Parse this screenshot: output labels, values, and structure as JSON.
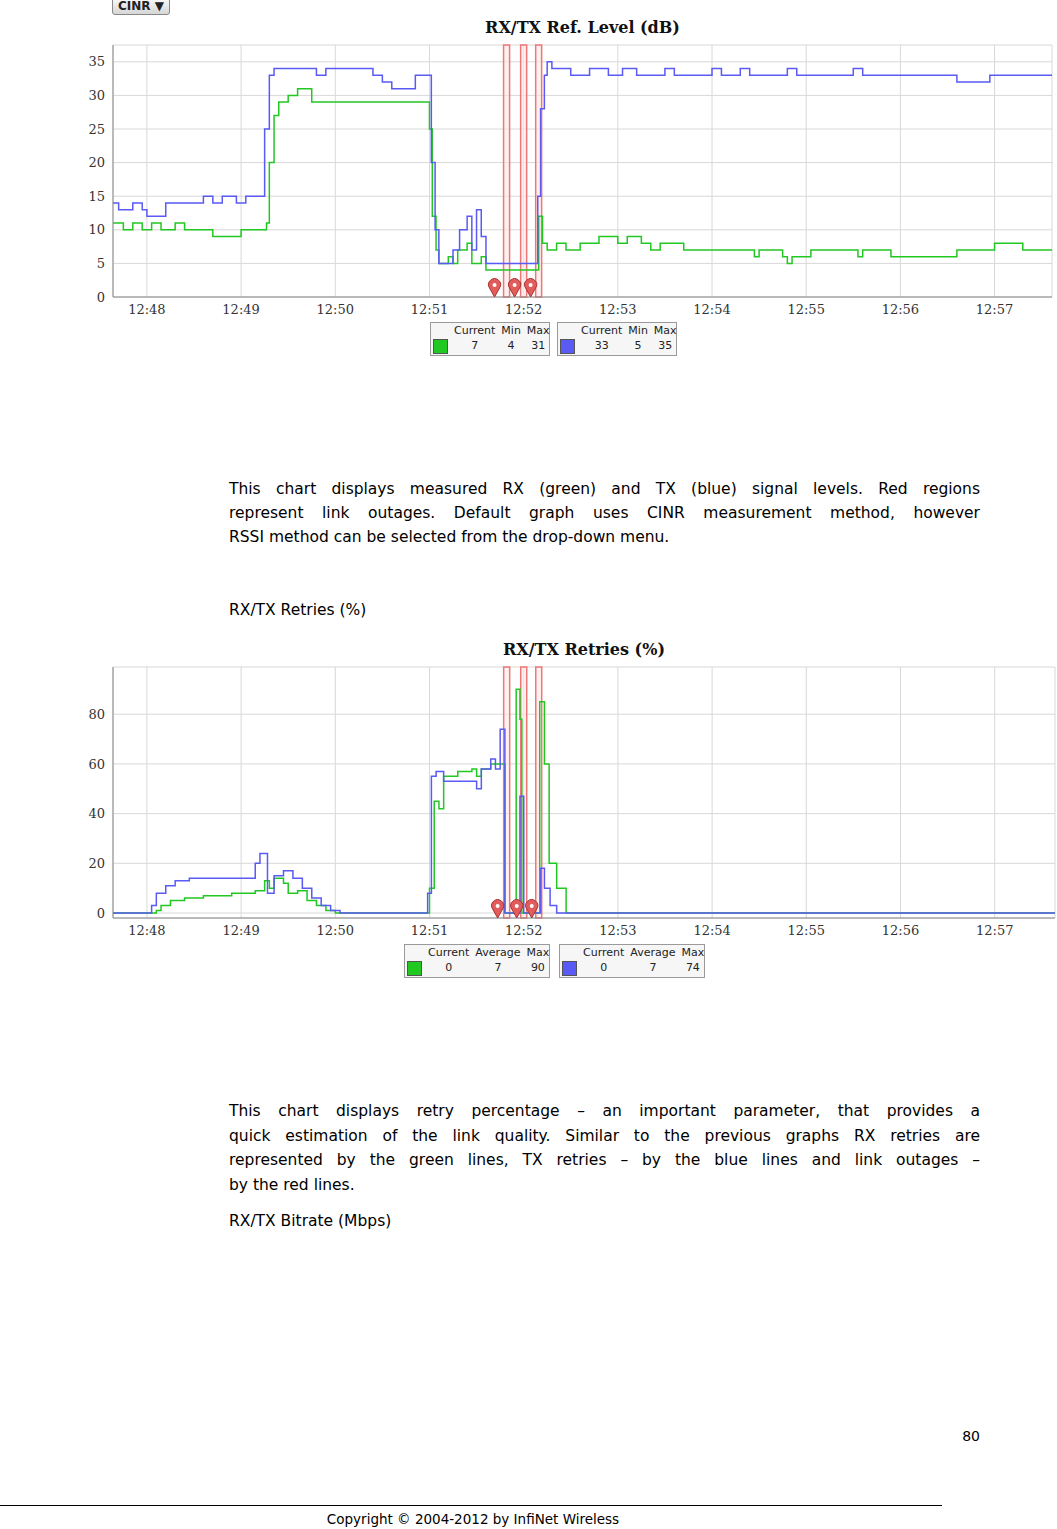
{
  "dropdown": "CINR ▼",
  "chart_data": [
    {
      "type": "line",
      "title": "RX/TX Ref. Level (dB)",
      "xlim": [
        767.64,
        777.61
      ],
      "xticks": [
        {
          "value": 768,
          "label": "12:48"
        },
        {
          "value": 769,
          "label": "12:49"
        },
        {
          "value": 770,
          "label": "12:50"
        },
        {
          "value": 771,
          "label": "12:51"
        },
        {
          "value": 772,
          "label": "12:52"
        },
        {
          "value": 773,
          "label": "12:53"
        },
        {
          "value": 774,
          "label": "12:54"
        },
        {
          "value": 775,
          "label": "12:55"
        },
        {
          "value": 776,
          "label": "12:56"
        },
        {
          "value": 777,
          "label": "12:57"
        }
      ],
      "ylim": [
        0,
        37.5
      ],
      "yticks": [
        0,
        5,
        10,
        15,
        20,
        25,
        30,
        35
      ],
      "grid": true,
      "outages": [
        [
          771.787,
          771.851
        ],
        [
          771.968,
          772.032
        ],
        [
          772.128,
          772.191
        ]
      ],
      "markers": [
        771.691,
        771.904,
        772.074
      ],
      "series": [
        {
          "color": "#22c822",
          "line_style": "step",
          "x": [
            767.64,
            767.75,
            767.85,
            767.95,
            768.05,
            768.15,
            768.3,
            768.4,
            768.55,
            768.7,
            768.9,
            769.0,
            769.2,
            769.27,
            769.3,
            769.35,
            769.4,
            769.5,
            769.6,
            769.75,
            770.0,
            770.3,
            770.6,
            770.95,
            771.0,
            771.03,
            771.07,
            771.1,
            771.2,
            771.25,
            771.3,
            771.4,
            771.45,
            771.55,
            771.6,
            772.12,
            772.16,
            772.2,
            772.25,
            772.35,
            772.45,
            772.6,
            772.8,
            773.0,
            773.1,
            773.25,
            773.35,
            773.45,
            773.65,
            773.7,
            774.0,
            774.4,
            774.45,
            774.5,
            774.75,
            774.8,
            774.85,
            775.05,
            775.3,
            775.55,
            775.6,
            775.8,
            775.9,
            776.5,
            776.6,
            777.0,
            777.3,
            777.45,
            777.61
          ],
          "values": [
            11,
            10,
            11,
            10,
            11,
            10,
            11,
            10,
            10,
            9,
            9,
            10,
            10,
            11,
            20,
            27,
            29,
            30,
            31,
            29,
            29,
            29,
            29,
            29,
            25,
            12,
            7,
            5,
            6,
            5,
            7,
            8,
            5,
            6,
            4,
            4,
            12,
            8,
            7,
            8,
            7,
            8,
            9,
            8,
            9,
            8,
            7,
            8,
            8,
            7,
            7,
            7,
            6,
            7,
            6,
            5,
            6,
            7,
            7,
            6,
            7,
            7,
            6,
            6,
            7,
            8,
            7,
            7,
            7
          ]
        },
        {
          "color": "#5a5af5",
          "line_style": "step",
          "x": [
            767.64,
            767.7,
            767.85,
            767.95,
            768.0,
            768.2,
            768.35,
            768.6,
            768.7,
            768.8,
            768.95,
            769.05,
            769.2,
            769.25,
            769.3,
            769.35,
            769.8,
            769.9,
            770.3,
            770.4,
            770.5,
            770.6,
            770.8,
            770.85,
            771.0,
            771.02,
            771.06,
            771.1,
            771.25,
            771.32,
            771.4,
            771.45,
            771.5,
            771.55,
            771.6,
            772.12,
            772.15,
            772.18,
            772.22,
            772.25,
            772.3,
            772.5,
            772.7,
            772.9,
            773.05,
            773.2,
            773.5,
            773.6,
            774.0,
            774.1,
            774.3,
            774.4,
            774.8,
            774.9,
            775.5,
            775.6,
            775.8,
            776.0,
            776.5,
            776.6,
            776.95,
            777.61
          ],
          "values": [
            14,
            13,
            14,
            13,
            12,
            14,
            14,
            15,
            14,
            15,
            14,
            15,
            15,
            25,
            33,
            34,
            33,
            34,
            34,
            33,
            32,
            31,
            31,
            33,
            33,
            20,
            10,
            5,
            7,
            10,
            12,
            7,
            13,
            9,
            5,
            5,
            15,
            28,
            33,
            35,
            34,
            33,
            34,
            33,
            34,
            33,
            34,
            33,
            34,
            33,
            34,
            33,
            34,
            33,
            34,
            33,
            33,
            33,
            33,
            32,
            33,
            33
          ]
        }
      ],
      "legend_table": {
        "columns": [
          "Current",
          "Min",
          "Max"
        ],
        "rows": [
          {
            "color": "#22c822",
            "values": [
              7,
              4,
              31
            ]
          },
          {
            "color": "#5a5af5",
            "values": [
              33,
              5,
              35
            ]
          }
        ]
      }
    },
    {
      "type": "line",
      "title": "RX/TX Retries (%)",
      "xlim": [
        767.64,
        777.64
      ],
      "xticks": [
        {
          "value": 768,
          "label": "12:48"
        },
        {
          "value": 769,
          "label": "12:49"
        },
        {
          "value": 770,
          "label": "12:50"
        },
        {
          "value": 771,
          "label": "12:51"
        },
        {
          "value": 772,
          "label": "12:52"
        },
        {
          "value": 773,
          "label": "12:53"
        },
        {
          "value": 774,
          "label": "12:54"
        },
        {
          "value": 775,
          "label": "12:55"
        },
        {
          "value": 776,
          "label": "12:56"
        },
        {
          "value": 777,
          "label": "12:57"
        }
      ],
      "ylim": [
        -2,
        99
      ],
      "yticks": [
        0,
        20,
        40,
        60,
        80
      ],
      "grid": true,
      "outages": [
        [
          771.787,
          771.851
        ],
        [
          771.968,
          772.032
        ],
        [
          772.128,
          772.191
        ]
      ],
      "markers": [
        771.723,
        771.926,
        772.085
      ],
      "series": [
        {
          "color": "#22c822",
          "line_style": "step",
          "x": [
            767.64,
            768.1,
            768.15,
            768.25,
            768.4,
            768.6,
            768.9,
            769.15,
            769.25,
            769.3,
            769.35,
            769.45,
            769.5,
            769.6,
            769.7,
            769.8,
            769.9,
            770.0,
            770.98,
            771.0,
            771.05,
            771.1,
            771.15,
            771.3,
            771.45,
            771.5,
            771.55,
            771.65,
            771.75,
            771.8,
            771.9,
            771.92,
            771.96,
            771.98,
            772.15,
            772.17,
            772.22,
            772.27,
            772.35,
            772.45,
            777.64
          ],
          "values": [
            0,
            1,
            3,
            5,
            6,
            7,
            8,
            9,
            13,
            10,
            14,
            12,
            8,
            9,
            5,
            3,
            1,
            0,
            0,
            10,
            45,
            42,
            55,
            57,
            58,
            55,
            58,
            60,
            60,
            0,
            0,
            90,
            78,
            0,
            0,
            85,
            60,
            20,
            10,
            0,
            0
          ]
        },
        {
          "color": "#5a5af5",
          "line_style": "step",
          "x": [
            767.64,
            768.0,
            768.05,
            768.1,
            768.2,
            768.3,
            768.45,
            769.15,
            769.2,
            769.28,
            769.35,
            769.45,
            769.55,
            769.65,
            769.75,
            769.85,
            769.95,
            770.05,
            770.95,
            770.98,
            771.02,
            771.07,
            771.15,
            771.5,
            771.55,
            771.65,
            771.7,
            771.75,
            771.8,
            771.94,
            771.96,
            772.0,
            772.18,
            772.22,
            772.28,
            772.35,
            777.64
          ],
          "values": [
            0,
            0,
            3,
            8,
            11,
            13,
            14,
            20,
            24,
            8,
            15,
            17,
            14,
            10,
            6,
            3,
            1,
            0,
            0,
            8,
            55,
            57,
            53,
            50,
            58,
            62,
            58,
            74,
            0,
            0,
            47,
            0,
            18,
            10,
            3,
            0,
            0
          ]
        }
      ],
      "legend_table": {
        "columns": [
          "Current",
          "Average",
          "Max"
        ],
        "rows": [
          {
            "color": "#22c822",
            "values": [
              0,
              7,
              90
            ]
          },
          {
            "color": "#5a5af5",
            "values": [
              0,
              7,
              74
            ]
          }
        ]
      }
    }
  ],
  "text": {
    "paragraph_1": [
      "This chart displays measured RX (green) and TX (blue) signal levels. Red regions",
      "represent link outages. Default graph uses CINR measurement method, however",
      "RSSI method can be selected from the drop-down menu."
    ],
    "heading_2": "RX/TX Retries (%)",
    "paragraph_2": [
      "This chart displays retry percentage – an important parameter, that provides a",
      "quick estimation of the link quality. Similar to the previous graphs RX retries are",
      "represented by the green lines, TX retries – by the blue lines and link outages –",
      "by the red lines."
    ],
    "heading_3": "RX/TX Bitrate (Mbps)"
  },
  "page_number": 80,
  "footer": "Copyright © 2004-2012 by InfiNet Wireless"
}
